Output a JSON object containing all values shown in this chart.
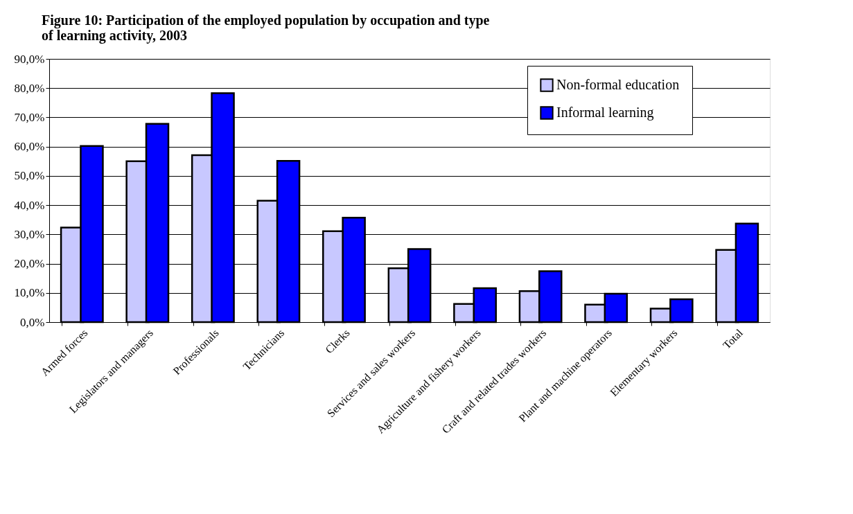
{
  "chart_data": {
    "type": "bar",
    "title": [
      "Figure 10: Participation of the employed population by occupation and type",
      "of learning activity, 2003"
    ],
    "categories": [
      "Armed forces",
      "Legislators and managers",
      "Professionals",
      "Technicians",
      "Clerks",
      "Services and sales workers",
      "Agriculture and fishery workers",
      "Craft and related trades workers",
      "Plant and machine operators",
      "Elementary workers",
      "Total"
    ],
    "series": [
      {
        "name": "Non-formal education",
        "color": "#c8c8ff",
        "values": [
          32.3,
          55.0,
          57.1,
          41.5,
          31.1,
          18.4,
          6.2,
          10.6,
          6.0,
          4.6,
          24.7
        ]
      },
      {
        "name": "Informal learning",
        "color": "#0000ff",
        "values": [
          60.2,
          67.8,
          78.3,
          55.1,
          35.7,
          25.0,
          11.6,
          17.4,
          9.7,
          7.8,
          33.7
        ]
      }
    ],
    "ylim": [
      0,
      90
    ],
    "yticks": [
      {
        "value": 0,
        "label": "0,0%"
      },
      {
        "value": 10,
        "label": "10,0%"
      },
      {
        "value": 20,
        "label": "20,0%"
      },
      {
        "value": 30,
        "label": "30,0%"
      },
      {
        "value": 40,
        "label": "40,0%"
      },
      {
        "value": 50,
        "label": "50,0%"
      },
      {
        "value": 60,
        "label": "60,0%"
      },
      {
        "value": 70,
        "label": "70,0%"
      },
      {
        "value": 80,
        "label": "80,0%"
      },
      {
        "value": 90,
        "label": "90,0%"
      }
    ],
    "grid": "y",
    "legend": "top right"
  }
}
